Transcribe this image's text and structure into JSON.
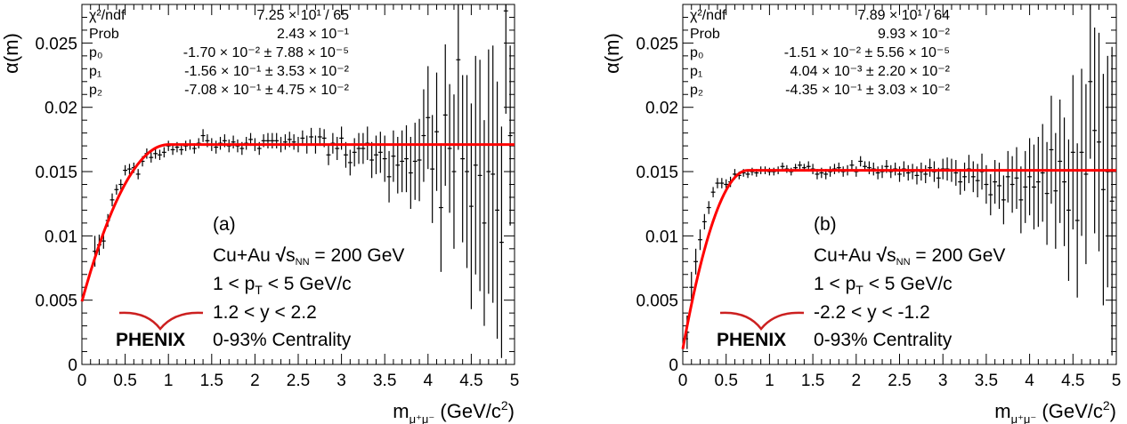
{
  "chart_data": [
    {
      "type": "scatter",
      "panel_label": "(a)",
      "xlabel": {
        "base": "m",
        "sub": "μ⁺μ⁻",
        "unit": " (GeV/c",
        "sup": "2",
        "close": ")"
      },
      "ylabel": "α(m)",
      "xlim": [
        0,
        5
      ],
      "ylim": [
        0,
        0.028
      ],
      "xticks": [
        "0",
        "0.5",
        "1",
        "1.5",
        "2",
        "2.5",
        "3",
        "3.5",
        "4",
        "4.5",
        "5"
      ],
      "yticks": [
        "0",
        "0.005",
        "0.01",
        "0.015",
        "0.02",
        "0.025"
      ],
      "fit": {
        "plateau": 0.0171,
        "start": 0.0049,
        "turnover": 1.0,
        "color": "#ff0000"
      },
      "stats": [
        {
          "name": "χ²/ndf",
          "value": "7.25 × 10¹ / 65"
        },
        {
          "name": "Prob",
          "value": "2.43 × 10⁻¹"
        },
        {
          "name": "p₀",
          "value": "-1.70 × 10⁻² ± 7.88 × 10⁻⁵"
        },
        {
          "name": "p₁",
          "value": "-1.56 × 10⁻¹ ± 3.53 × 10⁻²"
        },
        {
          "name": "p₂",
          "value": "-7.08 × 10⁻¹ ± 4.75 × 10⁻²"
        }
      ],
      "system": "Cu+Au",
      "energy_sym": "√",
      "energy_s": "s",
      "energy_sub": "NN",
      "energy_val": " = 200 GeV",
      "pt_left": "1 < p",
      "pt_sub": "T",
      "pt_right": " < 5 GeV/c",
      "rapidity": "1.2 < y < 2.2",
      "centrality": "0-93% Centrality",
      "logo": "PHENIX",
      "points": [
        [
          0.15,
          0.0088,
          0.0012
        ],
        [
          0.2,
          0.0093,
          0.0008
        ],
        [
          0.25,
          0.0096,
          0.0006
        ],
        [
          0.3,
          0.0112,
          0.0005
        ],
        [
          0.35,
          0.0128,
          0.0005
        ],
        [
          0.4,
          0.0136,
          0.0004
        ],
        [
          0.45,
          0.014,
          0.0004
        ],
        [
          0.5,
          0.0151,
          0.0004
        ],
        [
          0.55,
          0.0152,
          0.0004
        ],
        [
          0.6,
          0.0153,
          0.0004
        ],
        [
          0.65,
          0.0148,
          0.0004
        ],
        [
          0.7,
          0.0158,
          0.0004
        ],
        [
          0.75,
          0.0164,
          0.0004
        ],
        [
          0.8,
          0.0161,
          0.0004
        ],
        [
          0.85,
          0.0164,
          0.0004
        ],
        [
          0.9,
          0.0163,
          0.0004
        ],
        [
          0.95,
          0.0165,
          0.0004
        ],
        [
          1.0,
          0.017,
          0.0004
        ],
        [
          1.05,
          0.0167,
          0.0004
        ],
        [
          1.1,
          0.0169,
          0.0004
        ],
        [
          1.15,
          0.0167,
          0.0004
        ],
        [
          1.2,
          0.017,
          0.0004
        ],
        [
          1.25,
          0.0171,
          0.0004
        ],
        [
          1.3,
          0.0168,
          0.0004
        ],
        [
          1.35,
          0.0172,
          0.0004
        ],
        [
          1.4,
          0.0178,
          0.0005
        ],
        [
          1.45,
          0.0174,
          0.0005
        ],
        [
          1.5,
          0.0171,
          0.0005
        ],
        [
          1.55,
          0.0169,
          0.0005
        ],
        [
          1.6,
          0.0172,
          0.0005
        ],
        [
          1.65,
          0.0174,
          0.0005
        ],
        [
          1.7,
          0.017,
          0.0005
        ],
        [
          1.75,
          0.0173,
          0.0005
        ],
        [
          1.8,
          0.017,
          0.0005
        ],
        [
          1.85,
          0.0168,
          0.0005
        ],
        [
          1.9,
          0.0172,
          0.0005
        ],
        [
          1.95,
          0.0175,
          0.0005
        ],
        [
          2.0,
          0.0171,
          0.0005
        ],
        [
          2.05,
          0.0168,
          0.0005
        ],
        [
          2.1,
          0.0174,
          0.0005
        ],
        [
          2.15,
          0.0174,
          0.0006
        ],
        [
          2.2,
          0.0174,
          0.0006
        ],
        [
          2.25,
          0.0174,
          0.0006
        ],
        [
          2.3,
          0.0171,
          0.0006
        ],
        [
          2.35,
          0.0173,
          0.0006
        ],
        [
          2.4,
          0.0175,
          0.0006
        ],
        [
          2.45,
          0.0173,
          0.0006
        ],
        [
          2.5,
          0.0171,
          0.0006
        ],
        [
          2.55,
          0.0176,
          0.0006
        ],
        [
          2.6,
          0.0171,
          0.0007
        ],
        [
          2.65,
          0.0177,
          0.0007
        ],
        [
          2.7,
          0.0171,
          0.0007
        ],
        [
          2.75,
          0.0177,
          0.0007
        ],
        [
          2.8,
          0.0176,
          0.0007
        ],
        [
          2.85,
          0.0163,
          0.0008
        ],
        [
          2.9,
          0.0172,
          0.0008
        ],
        [
          2.95,
          0.0168,
          0.0009
        ],
        [
          3.0,
          0.0176,
          0.0009
        ],
        [
          3.05,
          0.0163,
          0.001
        ],
        [
          3.1,
          0.0157,
          0.001
        ],
        [
          3.15,
          0.0165,
          0.0011
        ],
        [
          3.2,
          0.0168,
          0.0012
        ],
        [
          3.25,
          0.0168,
          0.0012
        ],
        [
          3.3,
          0.0172,
          0.0013
        ],
        [
          3.35,
          0.0159,
          0.0014
        ],
        [
          3.4,
          0.0163,
          0.0015
        ],
        [
          3.45,
          0.0165,
          0.0016
        ],
        [
          3.5,
          0.016,
          0.0018
        ],
        [
          3.55,
          0.0146,
          0.002
        ],
        [
          3.6,
          0.0162,
          0.002
        ],
        [
          3.65,
          0.0155,
          0.0022
        ],
        [
          3.7,
          0.0158,
          0.0024
        ],
        [
          3.75,
          0.016,
          0.0026
        ],
        [
          3.8,
          0.0149,
          0.0028
        ],
        [
          3.85,
          0.0158,
          0.003
        ],
        [
          3.9,
          0.0159,
          0.0032
        ],
        [
          3.95,
          0.0178,
          0.0036
        ],
        [
          4.0,
          0.0192,
          0.004
        ],
        [
          4.05,
          0.0152,
          0.0042
        ],
        [
          4.1,
          0.0181,
          0.0046
        ],
        [
          4.15,
          0.0122,
          0.005
        ],
        [
          4.2,
          0.0194,
          0.0055
        ],
        [
          4.25,
          0.0168,
          0.005
        ],
        [
          4.3,
          0.015,
          0.006
        ],
        [
          4.35,
          0.0237,
          0.007
        ],
        [
          4.4,
          0.016,
          0.0065
        ],
        [
          4.45,
          0.015,
          0.0075
        ],
        [
          4.5,
          0.0123,
          0.008
        ],
        [
          4.55,
          0.0155,
          0.0085
        ],
        [
          4.6,
          0.0147,
          0.009
        ],
        [
          4.65,
          0.011,
          0.008
        ],
        [
          4.7,
          0.015,
          0.0095
        ],
        [
          4.75,
          0.0148,
          0.01
        ],
        [
          4.8,
          0.012,
          0.01
        ],
        [
          4.85,
          0.0095,
          0.009
        ],
        [
          4.9,
          0.0275,
          0.008
        ],
        [
          4.95,
          0.0178,
          0.007
        ]
      ]
    },
    {
      "type": "scatter",
      "panel_label": "(b)",
      "xlabel": {
        "base": "m",
        "sub": "μ⁺μ⁻",
        "unit": " (GeV/c",
        "sup": "2",
        "close": ")"
      },
      "ylabel": "α(m)",
      "xlim": [
        0,
        5
      ],
      "ylim": [
        0,
        0.028
      ],
      "xticks": [
        "0",
        "0.5",
        "1",
        "1.5",
        "2",
        "2.5",
        "3",
        "3.5",
        "4",
        "4.5",
        "5"
      ],
      "yticks": [
        "0",
        "0.005",
        "0.01",
        "0.015",
        "0.02",
        "0.025"
      ],
      "fit": {
        "plateau": 0.0151,
        "start": 0.0012,
        "turnover": 0.75,
        "color": "#ff0000"
      },
      "stats": [
        {
          "name": "χ²/ndf",
          "value": "7.89 × 10¹ / 64"
        },
        {
          "name": "Prob",
          "value": "9.93 × 10⁻²"
        },
        {
          "name": "p₀",
          "value": "-1.51 × 10⁻² ± 5.56 × 10⁻⁵"
        },
        {
          "name": "p₁",
          "value": "4.04 × 10⁻³ ± 2.20 × 10⁻²"
        },
        {
          "name": "p₂",
          "value": "-4.35 × 10⁻¹ ± 3.03 × 10⁻²"
        }
      ],
      "system": "Cu+Au",
      "energy_sym": "√",
      "energy_s": "s",
      "energy_sub": "NN",
      "energy_val": " = 200 GeV",
      "pt_left": "1 < p",
      "pt_sub": "T",
      "pt_right": " < 5 GeV/c",
      "rapidity": "-2.2 < y < -1.2",
      "centrality": "0-93% Centrality",
      "logo": "PHENIX",
      "points": [
        [
          0.05,
          0.0025,
          0.0013
        ],
        [
          0.1,
          0.006,
          0.0012
        ],
        [
          0.15,
          0.008,
          0.001
        ],
        [
          0.2,
          0.0097,
          0.0008
        ],
        [
          0.25,
          0.0111,
          0.0006
        ],
        [
          0.3,
          0.0122,
          0.0005
        ],
        [
          0.35,
          0.0134,
          0.0004
        ],
        [
          0.4,
          0.0141,
          0.0004
        ],
        [
          0.45,
          0.0141,
          0.0004
        ],
        [
          0.5,
          0.014,
          0.0004
        ],
        [
          0.55,
          0.0142,
          0.0004
        ],
        [
          0.6,
          0.0148,
          0.0004
        ],
        [
          0.65,
          0.0147,
          0.0003
        ],
        [
          0.7,
          0.0149,
          0.0003
        ],
        [
          0.75,
          0.0148,
          0.0003
        ],
        [
          0.8,
          0.015,
          0.0003
        ],
        [
          0.85,
          0.0149,
          0.0003
        ],
        [
          0.9,
          0.0151,
          0.0003
        ],
        [
          0.95,
          0.0151,
          0.0003
        ],
        [
          1.0,
          0.015,
          0.0003
        ],
        [
          1.05,
          0.015,
          0.0003
        ],
        [
          1.1,
          0.0151,
          0.0003
        ],
        [
          1.15,
          0.0154,
          0.0003
        ],
        [
          1.2,
          0.0152,
          0.0003
        ],
        [
          1.25,
          0.015,
          0.0003
        ],
        [
          1.3,
          0.0153,
          0.0003
        ],
        [
          1.35,
          0.0155,
          0.0003
        ],
        [
          1.4,
          0.0153,
          0.0003
        ],
        [
          1.45,
          0.0154,
          0.0004
        ],
        [
          1.5,
          0.0152,
          0.0004
        ],
        [
          1.55,
          0.0148,
          0.0004
        ],
        [
          1.6,
          0.0149,
          0.0004
        ],
        [
          1.65,
          0.0148,
          0.0004
        ],
        [
          1.7,
          0.015,
          0.0004
        ],
        [
          1.75,
          0.0152,
          0.0004
        ],
        [
          1.8,
          0.0153,
          0.0004
        ],
        [
          1.85,
          0.015,
          0.0004
        ],
        [
          1.9,
          0.0151,
          0.0004
        ],
        [
          1.95,
          0.0155,
          0.0004
        ],
        [
          2.0,
          0.015,
          0.0004
        ],
        [
          2.05,
          0.0158,
          0.0004
        ],
        [
          2.1,
          0.0154,
          0.0004
        ],
        [
          2.15,
          0.0153,
          0.0005
        ],
        [
          2.2,
          0.0152,
          0.0005
        ],
        [
          2.25,
          0.0149,
          0.0005
        ],
        [
          2.3,
          0.015,
          0.0005
        ],
        [
          2.35,
          0.0154,
          0.0005
        ],
        [
          2.4,
          0.015,
          0.0005
        ],
        [
          2.45,
          0.0152,
          0.0005
        ],
        [
          2.5,
          0.0148,
          0.0006
        ],
        [
          2.55,
          0.0152,
          0.0006
        ],
        [
          2.6,
          0.0149,
          0.0006
        ],
        [
          2.65,
          0.015,
          0.0006
        ],
        [
          2.7,
          0.0147,
          0.0007
        ],
        [
          2.75,
          0.015,
          0.0007
        ],
        [
          2.8,
          0.0148,
          0.0007
        ],
        [
          2.85,
          0.0153,
          0.0007
        ],
        [
          2.9,
          0.015,
          0.0008
        ],
        [
          2.95,
          0.0145,
          0.0008
        ],
        [
          3.0,
          0.0152,
          0.0008
        ],
        [
          3.05,
          0.0152,
          0.0009
        ],
        [
          3.1,
          0.0151,
          0.0009
        ],
        [
          3.15,
          0.0149,
          0.001
        ],
        [
          3.2,
          0.0142,
          0.001
        ],
        [
          3.25,
          0.0146,
          0.0011
        ],
        [
          3.3,
          0.0152,
          0.0011
        ],
        [
          3.35,
          0.0146,
          0.0012
        ],
        [
          3.4,
          0.0143,
          0.0013
        ],
        [
          3.45,
          0.015,
          0.0014
        ],
        [
          3.5,
          0.014,
          0.0015
        ],
        [
          3.55,
          0.0132,
          0.0016
        ],
        [
          3.6,
          0.0142,
          0.0017
        ],
        [
          3.65,
          0.0139,
          0.0018
        ],
        [
          3.7,
          0.0128,
          0.0019
        ],
        [
          3.75,
          0.0146,
          0.002
        ],
        [
          3.8,
          0.014,
          0.0022
        ],
        [
          3.85,
          0.0145,
          0.0024
        ],
        [
          3.9,
          0.0128,
          0.0026
        ],
        [
          3.95,
          0.0138,
          0.0028
        ],
        [
          4.0,
          0.0146,
          0.003
        ],
        [
          4.05,
          0.0138,
          0.0033
        ],
        [
          4.1,
          0.0142,
          0.0035
        ],
        [
          4.15,
          0.0149,
          0.0038
        ],
        [
          4.2,
          0.0133,
          0.004
        ],
        [
          4.25,
          0.0167,
          0.0042
        ],
        [
          4.3,
          0.0135,
          0.0045
        ],
        [
          4.35,
          0.0158,
          0.0048
        ],
        [
          4.4,
          0.0142,
          0.005
        ],
        [
          4.45,
          0.012,
          0.0055
        ],
        [
          4.5,
          0.0165,
          0.006
        ],
        [
          4.55,
          0.0112,
          0.006
        ],
        [
          4.6,
          0.0165,
          0.0065
        ],
        [
          4.65,
          0.0148,
          0.007
        ],
        [
          4.7,
          0.022,
          0.006
        ],
        [
          4.75,
          0.0182,
          0.008
        ],
        [
          4.8,
          0.0173,
          0.0085
        ],
        [
          4.85,
          0.0136,
          0.009
        ],
        [
          4.9,
          0.015,
          0.009
        ],
        [
          4.95,
          0.0127,
          0.012
        ]
      ]
    }
  ]
}
